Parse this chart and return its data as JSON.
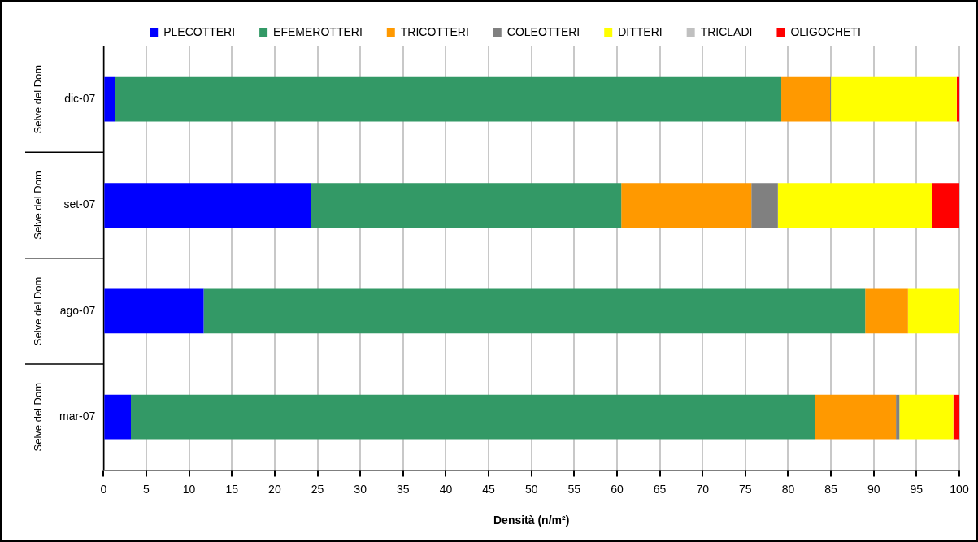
{
  "chart_data": {
    "type": "bar",
    "orientation": "horizontal",
    "stacked": true,
    "categories": [
      "dic-07",
      "set-07",
      "ago-07",
      "mar-07"
    ],
    "series": [
      {
        "name": "PLECOTTERI",
        "color": "#0000ff",
        "values": [
          1.3,
          24.2,
          11.7,
          3.2
        ]
      },
      {
        "name": "EFEMEROTTERI",
        "color": "#339966",
        "values": [
          77.9,
          36.3,
          77.3,
          79.9
        ]
      },
      {
        "name": "TRICOTTERI",
        "color": "#ff9900",
        "values": [
          5.7,
          15.2,
          5.0,
          9.5
        ]
      },
      {
        "name": "COLEOTTERI",
        "color": "#808080",
        "values": [
          0.1,
          3.1,
          0,
          0.4
        ]
      },
      {
        "name": "DITTERI",
        "color": "#ffff00",
        "values": [
          14.7,
          18.0,
          6.0,
          6.3
        ]
      },
      {
        "name": "TRICLADI",
        "color": "#c0c0c0",
        "values": [
          0,
          0,
          0,
          0
        ]
      },
      {
        "name": "OLIGOCHETI",
        "color": "#ff0000",
        "values": [
          0.3,
          3.2,
          0,
          0.7
        ]
      }
    ],
    "xlim": [
      0,
      100
    ],
    "xticks": [
      0,
      5,
      10,
      15,
      20,
      25,
      30,
      35,
      40,
      45,
      50,
      55,
      60,
      65,
      70,
      75,
      80,
      85,
      90,
      95,
      100
    ],
    "xlabel": "Densità (n/m²)",
    "annotations": [
      "Selve del Dom",
      "Selve del Dom",
      "Selve del Dom",
      "Selve del Dom"
    ],
    "grid": "x",
    "legend": "top"
  }
}
